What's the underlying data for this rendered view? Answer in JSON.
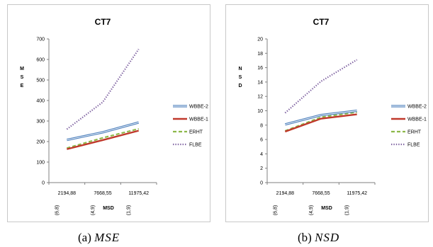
{
  "chart_data": [
    {
      "type": "line",
      "title": "CT7",
      "ylabel": "MSE",
      "xlabel": "MSD",
      "categories": [
        "2194,88",
        "7668,55",
        "11975,42"
      ],
      "category_sublabels": [
        "(6,8)",
        "(4,9)",
        "(1,9)"
      ],
      "ylim": [
        0,
        700
      ],
      "yticks": [
        0,
        100,
        200,
        300,
        400,
        500,
        600,
        700
      ],
      "grid": false,
      "legend": "right",
      "series": [
        {
          "name": "WBBE-2",
          "values": [
            208,
            245,
            293
          ],
          "color": "#4f81bd",
          "style": "double"
        },
        {
          "name": "WBBE-1",
          "values": [
            163,
            207,
            253
          ],
          "color": "#c0392b",
          "style": "solid"
        },
        {
          "name": "ERHT",
          "values": [
            168,
            218,
            262
          ],
          "color": "#8db84a",
          "style": "dashed"
        },
        {
          "name": "FLBE",
          "values": [
            260,
            392,
            650
          ],
          "color": "#8064a2",
          "style": "dotted"
        }
      ]
    },
    {
      "type": "line",
      "title": "CT7",
      "ylabel": "NSD",
      "xlabel": "MSD",
      "categories": [
        "2194,88",
        "7668,55",
        "11975,42"
      ],
      "category_sublabels": [
        "(6,8)",
        "(4,9)",
        "(1,9)"
      ],
      "ylim": [
        0,
        20
      ],
      "yticks": [
        0,
        2,
        4,
        6,
        8,
        10,
        12,
        14,
        16,
        18,
        20
      ],
      "grid": false,
      "legend": "right",
      "series": [
        {
          "name": "WBBE-2",
          "values": [
            8.1,
            9.4,
            10.0
          ],
          "color": "#4f81bd",
          "style": "double"
        },
        {
          "name": "WBBE-1",
          "values": [
            7.1,
            8.9,
            9.5
          ],
          "color": "#c0392b",
          "style": "solid"
        },
        {
          "name": "ERHT",
          "values": [
            7.2,
            9.1,
            9.8
          ],
          "color": "#8db84a",
          "style": "dashed"
        },
        {
          "name": "FLBE",
          "values": [
            9.7,
            14.1,
            17.1
          ],
          "color": "#8064a2",
          "style": "dotted"
        }
      ]
    }
  ],
  "captions": [
    {
      "tag": "(a)",
      "symbol": "MSE"
    },
    {
      "tag": "(b)",
      "symbol": "NSD"
    }
  ]
}
